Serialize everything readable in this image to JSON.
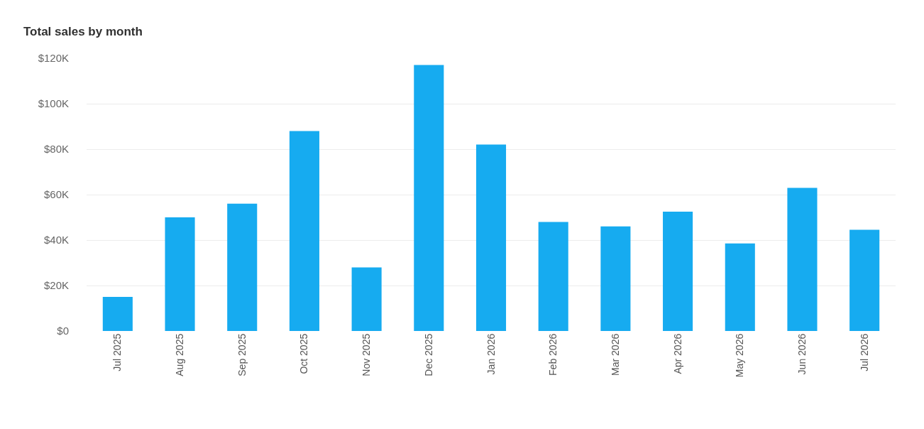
{
  "chart_data": {
    "type": "bar",
    "title": "Total sales by month",
    "categories": [
      "Jul 2025",
      "Aug 2025",
      "Sep 2025",
      "Oct 2025",
      "Nov 2025",
      "Dec 2025",
      "Jan 2026",
      "Feb 2026",
      "Mar 2026",
      "Apr 2026",
      "May 2026",
      "Jun 2026",
      "Jul 2026"
    ],
    "values": [
      15000,
      50000,
      56000,
      88000,
      28000,
      117000,
      82000,
      48000,
      46000,
      52500,
      38500,
      63000,
      44500
    ],
    "color": "#16abf0",
    "ylim": [
      0,
      120000
    ],
    "yticks": [
      {
        "value": 0,
        "label": "$0"
      },
      {
        "value": 20000,
        "label": "$20K"
      },
      {
        "value": 40000,
        "label": "$40K"
      },
      {
        "value": 60000,
        "label": "$60K"
      },
      {
        "value": 80000,
        "label": "$80K"
      },
      {
        "value": 100000,
        "label": "$100K"
      },
      {
        "value": 120000,
        "label": "$120K"
      }
    ],
    "grid": "y",
    "legend": false
  }
}
